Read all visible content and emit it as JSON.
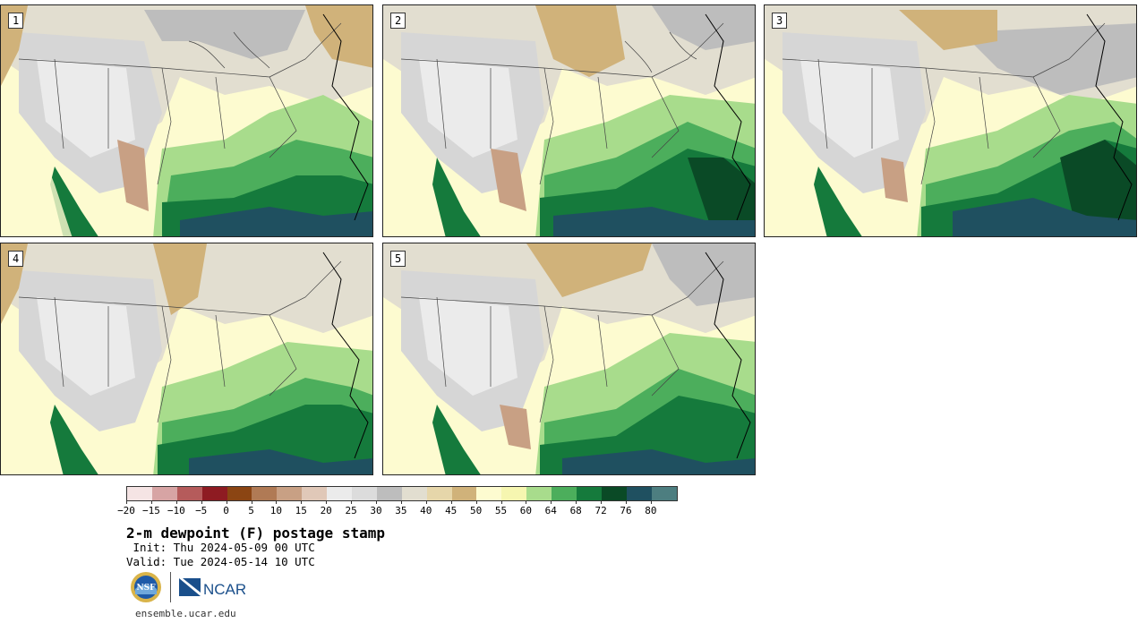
{
  "panels": [
    {
      "label": "1"
    },
    {
      "label": "2"
    },
    {
      "label": "3"
    },
    {
      "label": "4"
    },
    {
      "label": "5"
    }
  ],
  "colorbar": {
    "colors": [
      "#f5e4e4",
      "#d7a4a4",
      "#b55b5b",
      "#8e1b22",
      "#8b4513",
      "#b07a55",
      "#c8a084",
      "#e0c8b8",
      "#ebebeb",
      "#dcdcdc",
      "#bdbdbd",
      "#e2ded0",
      "#e6d6aa",
      "#d0b27a",
      "#fdfbd0",
      "#f6f6b0",
      "#a8dc8c",
      "#4cae5c",
      "#157a3c",
      "#0a4a26",
      "#1f5060",
      "#4d7e80"
    ],
    "tick_labels": [
      "−20",
      "−15",
      "−10",
      "−5",
      "0",
      "5",
      "10",
      "15",
      "20",
      "25",
      "30",
      "35",
      "40",
      "45",
      "50",
      "55",
      "60",
      "64",
      "68",
      "72",
      "76",
      "80"
    ]
  },
  "title": "2-m dewpoint (F) postage stamp",
  "init_line": " Init: Thu 2024-05-09 00 UTC",
  "valid_line": "Valid: Tue 2024-05-14 10 UTC",
  "logos": {
    "nsf_text": "NSF",
    "ncar_text": "NCAR"
  },
  "website": "ensemble.ucar.edu"
}
